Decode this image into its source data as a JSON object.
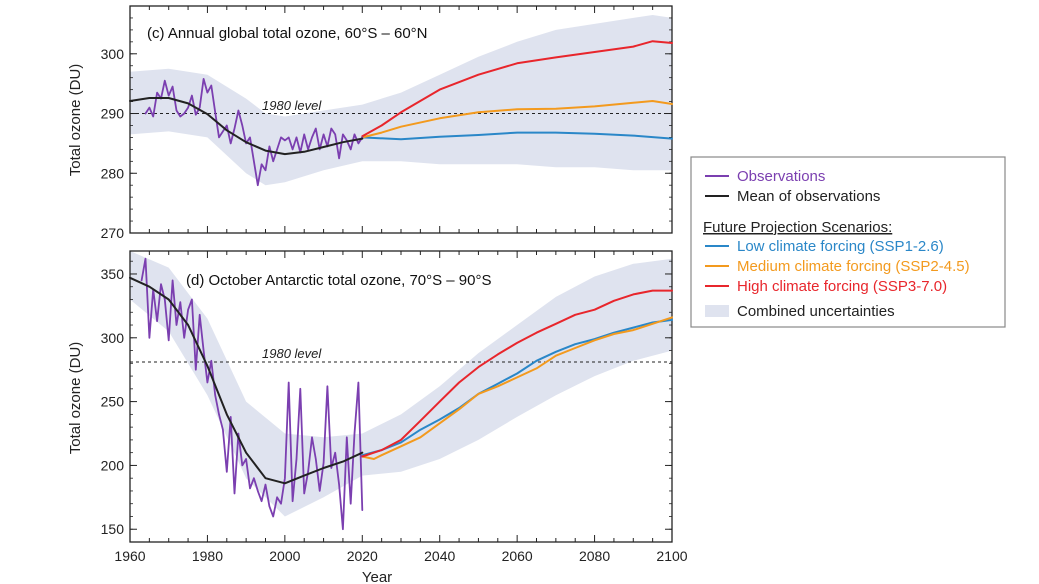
{
  "colors": {
    "observations": "#7b3fb0",
    "mean": "#222222",
    "low": "#2a87c8",
    "medium": "#f39a1e",
    "high": "#e8262c",
    "uncertainty": "#dfe3ef",
    "frame": "#222222",
    "legend_border": "#888888"
  },
  "shared": {
    "xlabel": "Year",
    "x_ticks": [
      "1960",
      "1980",
      "2000",
      "2020",
      "2040",
      "2060",
      "2080",
      "2100"
    ],
    "reference_label": "1980 level"
  },
  "legend": {
    "observations": "Observations",
    "mean": "Mean of observations",
    "heading": "Future Projection Scenarios:",
    "low": "Low climate forcing (SSP1-2.6)",
    "medium": "Medium climate forcing (SSP2-4.5)",
    "high": "High climate forcing (SSP3-7.0)",
    "uncertainty": "Combined uncertainties"
  },
  "chart_data": [
    {
      "type": "line",
      "title": "(c) Annual global total ozone, 60°S – 60°N",
      "xlabel": "Year",
      "ylabel": "Total ozone (DU)",
      "xlim": [
        1960,
        2100
      ],
      "ylim": [
        270,
        308
      ],
      "y_ticks": [
        "270",
        "280",
        "290",
        "300"
      ],
      "reference": {
        "label": "1980 level",
        "value": 290
      },
      "observations": {
        "x": [
          1964,
          1965,
          1966,
          1967,
          1968,
          1969,
          1970,
          1971,
          1972,
          1973,
          1974,
          1975,
          1976,
          1977,
          1978,
          1979,
          1980,
          1981,
          1982,
          1983,
          1984,
          1985,
          1986,
          1987,
          1988,
          1989,
          1990,
          1991,
          1992,
          1993,
          1994,
          1995,
          1996,
          1997,
          1998,
          1999,
          2000,
          2001,
          2002,
          2003,
          2004,
          2005,
          2006,
          2007,
          2008,
          2009,
          2010,
          2011,
          2012,
          2013,
          2014,
          2015,
          2016,
          2017,
          2018,
          2019,
          2020
        ],
        "y": [
          290.0,
          291.0,
          289.5,
          293.5,
          292.5,
          295.5,
          293.0,
          294.5,
          290.5,
          289.5,
          290.0,
          291.0,
          293.0,
          289.8,
          291.0,
          295.8,
          293.5,
          294.7,
          290.2,
          286.0,
          287.0,
          288.0,
          285.0,
          287.5,
          290.5,
          288.0,
          285.0,
          286.0,
          282.0,
          278.0,
          281.5,
          280.5,
          284.5,
          282.0,
          284.0,
          286.0,
          285.5,
          286.0,
          284.0,
          286.0,
          283.5,
          286.5,
          284.0,
          286.0,
          287.5,
          284.0,
          286.5,
          284.5,
          287.5,
          286.5,
          282.5,
          286.5,
          285.5,
          284.0,
          286.5,
          285.0,
          286.0
        ]
      },
      "mean_of_observations": {
        "x": [
          1960,
          1965,
          1970,
          1975,
          1980,
          1985,
          1990,
          1995,
          2000,
          2005,
          2010,
          2015,
          2020
        ],
        "y": [
          292.1,
          292.6,
          292.6,
          291.7,
          289.9,
          287.2,
          285.2,
          283.8,
          283.2,
          283.6,
          284.4,
          285.2,
          285.8
        ]
      },
      "series": [
        {
          "name": "Low climate forcing (SSP1-2.6)",
          "x": [
            2020,
            2030,
            2040,
            2050,
            2060,
            2070,
            2080,
            2090,
            2100
          ],
          "y": [
            286.0,
            285.7,
            286.1,
            286.4,
            286.8,
            286.8,
            286.6,
            286.3,
            285.8
          ]
        },
        {
          "name": "Medium climate forcing (SSP2-4.5)",
          "x": [
            2020,
            2025,
            2030,
            2040,
            2050,
            2060,
            2070,
            2080,
            2090,
            2095,
            2100
          ],
          "y": [
            286.0,
            286.8,
            287.8,
            289.2,
            290.2,
            290.7,
            290.8,
            291.2,
            291.8,
            292.1,
            291.6
          ]
        },
        {
          "name": "High climate forcing (SSP3-7.0)",
          "x": [
            2020,
            2025,
            2030,
            2040,
            2050,
            2060,
            2070,
            2080,
            2090,
            2095,
            2100
          ],
          "y": [
            286.2,
            288.0,
            290.2,
            294.0,
            296.5,
            298.4,
            299.4,
            300.3,
            301.2,
            302.1,
            301.8
          ]
        }
      ],
      "uncertainty_band": {
        "x": [
          1960,
          1970,
          1980,
          1990,
          1995,
          2000,
          2010,
          2020,
          2030,
          2040,
          2050,
          2060,
          2070,
          2080,
          2090,
          2095,
          2100
        ],
        "lower": [
          286.5,
          287.0,
          286.0,
          280.0,
          278.0,
          278.5,
          280.5,
          282.0,
          282.0,
          281.5,
          281.5,
          281.5,
          281.0,
          281.0,
          280.5,
          280.5,
          280.5
        ],
        "upper": [
          297.0,
          297.5,
          296.5,
          292.5,
          290.0,
          289.5,
          290.5,
          291.5,
          293.5,
          296.5,
          299.5,
          302.0,
          304.0,
          305.0,
          306.0,
          306.5,
          306.0
        ]
      }
    },
    {
      "type": "line",
      "title": "(d) October Antarctic total ozone, 70°S – 90°S",
      "xlabel": "Year",
      "ylabel": "Total ozone (DU)",
      "xlim": [
        1960,
        2100
      ],
      "ylim": [
        140,
        368
      ],
      "y_ticks": [
        "150",
        "200",
        "250",
        "300",
        "350"
      ],
      "reference": {
        "label": "1980 level",
        "value": 281
      },
      "observations": {
        "x": [
          1963,
          1964,
          1965,
          1966,
          1967,
          1968,
          1969,
          1970,
          1971,
          1972,
          1973,
          1974,
          1975,
          1976,
          1977,
          1978,
          1979,
          1980,
          1981,
          1982,
          1983,
          1984,
          1985,
          1986,
          1987,
          1988,
          1989,
          1990,
          1991,
          1992,
          1993,
          1994,
          1995,
          1996,
          1997,
          1998,
          1999,
          2000,
          2001,
          2002,
          2003,
          2004,
          2005,
          2006,
          2007,
          2008,
          2009,
          2010,
          2011,
          2012,
          2013,
          2014,
          2015,
          2016,
          2017,
          2018,
          2019,
          2020
        ],
        "y": [
          345,
          362,
          300,
          338,
          313,
          342,
          330,
          298,
          345,
          310,
          328,
          300,
          322,
          330,
          275,
          318,
          290,
          265,
          282,
          255,
          240,
          228,
          195,
          238,
          178,
          225,
          200,
          205,
          182,
          190,
          180,
          172,
          185,
          168,
          160,
          175,
          170,
          190,
          265,
          172,
          205,
          260,
          178,
          195,
          222,
          205,
          180,
          202,
          262,
          198,
          210,
          185,
          150,
          222,
          170,
          225,
          265,
          165
        ]
      },
      "mean_of_observations": {
        "x": [
          1960,
          1965,
          1970,
          1975,
          1980,
          1985,
          1990,
          1995,
          2000,
          2005,
          2010,
          2015,
          2020
        ],
        "y": [
          347,
          340,
          330,
          310,
          278,
          240,
          210,
          190,
          186,
          192,
          198,
          203,
          210
        ]
      },
      "series": [
        {
          "name": "Low climate forcing (SSP1-2.6)",
          "x": [
            2020,
            2025,
            2030,
            2035,
            2040,
            2045,
            2050,
            2055,
            2060,
            2065,
            2070,
            2075,
            2080,
            2085,
            2090,
            2095,
            2100
          ],
          "y": [
            208,
            212,
            218,
            228,
            236,
            245,
            256,
            264,
            272,
            282,
            289,
            295,
            299,
            304,
            308,
            312,
            314
          ]
        },
        {
          "name": "Medium climate forcing (SSP2-4.5)",
          "x": [
            2020,
            2023,
            2025,
            2030,
            2035,
            2040,
            2045,
            2050,
            2055,
            2060,
            2065,
            2070,
            2075,
            2080,
            2085,
            2090,
            2095,
            2100
          ],
          "y": [
            207,
            205,
            208,
            215,
            222,
            233,
            244,
            256,
            262,
            269,
            276,
            286,
            292,
            298,
            303,
            306,
            311,
            316
          ]
        },
        {
          "name": "High climate forcing (SSP3-7.0)",
          "x": [
            2020,
            2025,
            2030,
            2035,
            2040,
            2045,
            2050,
            2055,
            2060,
            2065,
            2070,
            2075,
            2080,
            2085,
            2090,
            2095,
            2100
          ],
          "y": [
            207,
            212,
            220,
            235,
            250,
            265,
            277,
            287,
            296,
            304,
            311,
            318,
            322,
            329,
            334,
            337,
            337
          ]
        }
      ],
      "uncertainty_band": {
        "x": [
          1960,
          1970,
          1980,
          1990,
          2000,
          2010,
          2020,
          2030,
          2040,
          2050,
          2060,
          2070,
          2080,
          2090,
          2100
        ],
        "lower": [
          330,
          305,
          255,
          190,
          160,
          175,
          192,
          195,
          205,
          220,
          238,
          255,
          270,
          282,
          290
        ],
        "upper": [
          368,
          355,
          315,
          250,
          225,
          222,
          225,
          240,
          262,
          288,
          310,
          332,
          348,
          358,
          362
        ]
      }
    }
  ]
}
